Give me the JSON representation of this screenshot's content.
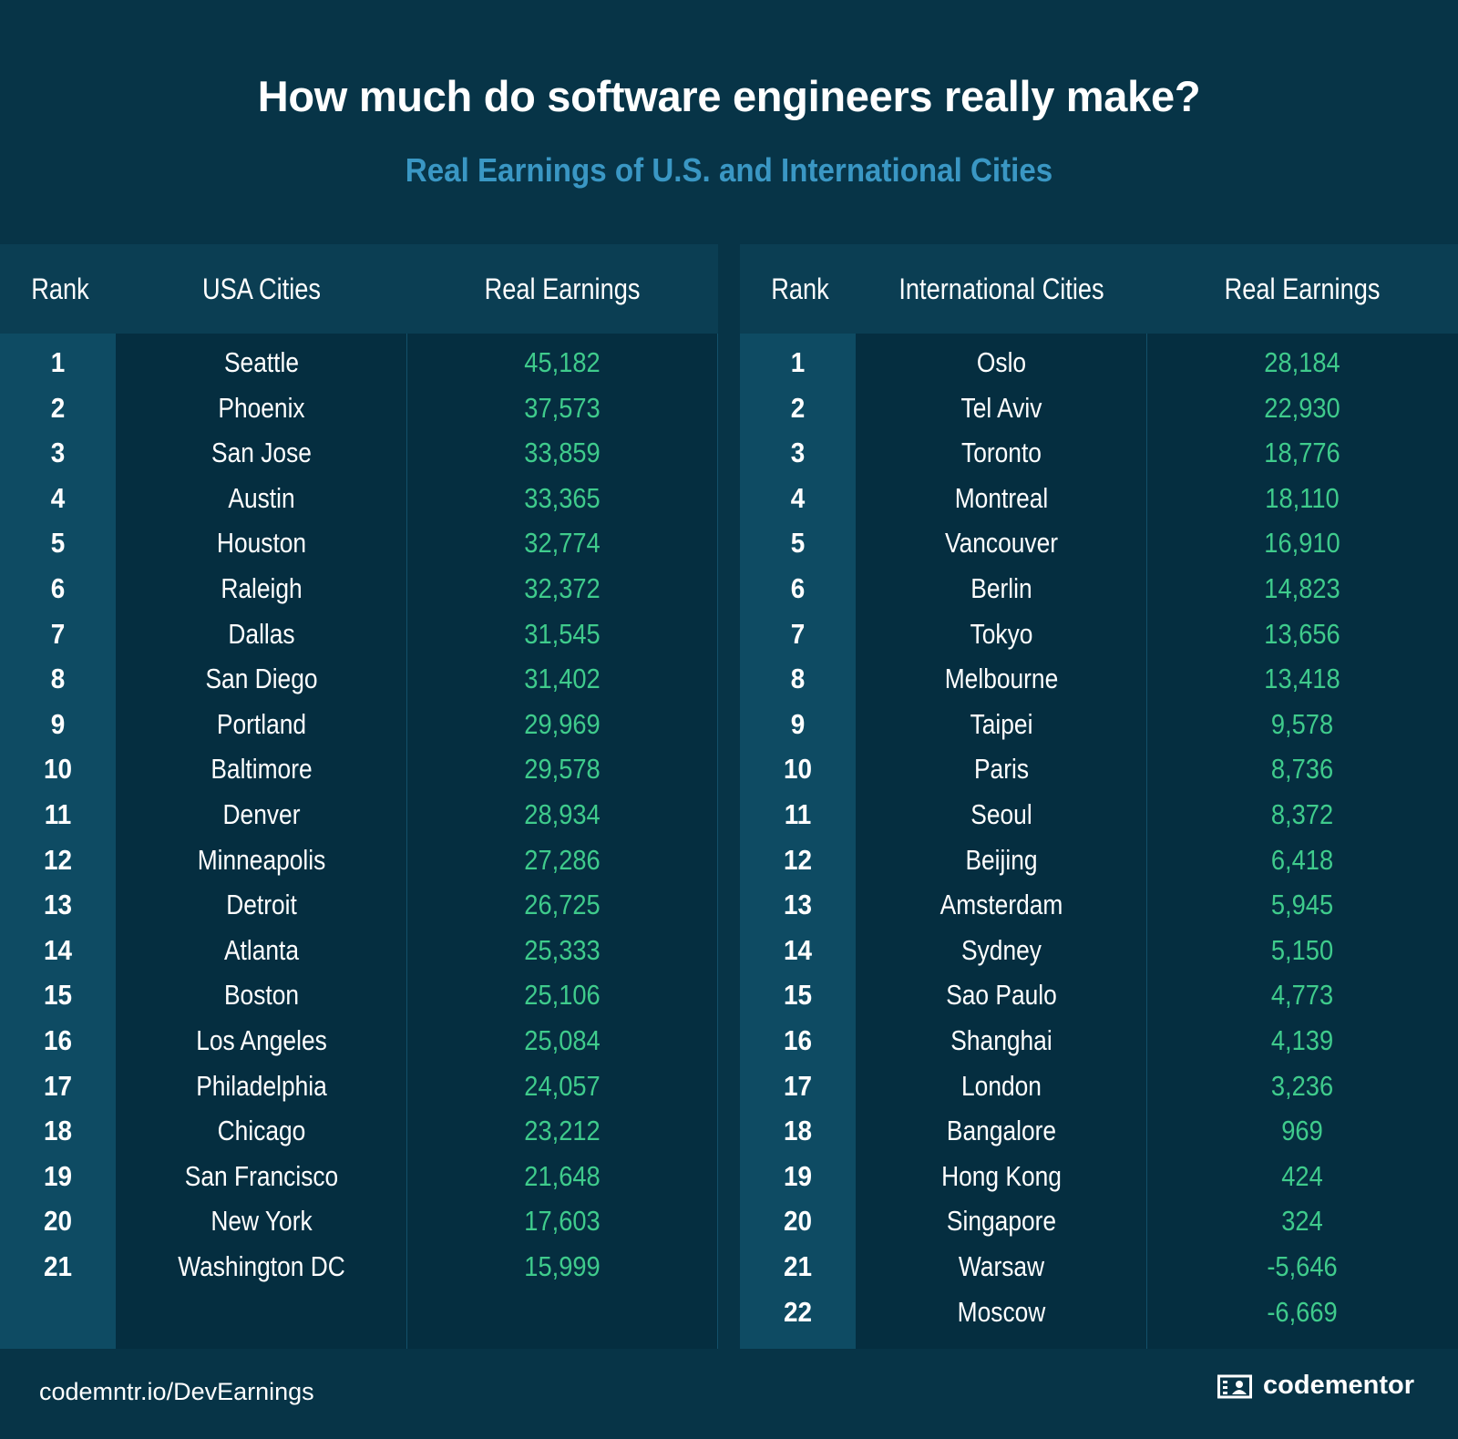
{
  "header": {
    "title": "How much do software engineers really make?",
    "subtitle": "Real Earnings of U.S. and International Cities"
  },
  "colors": {
    "background": "#073447",
    "subtitle": "#3a97c4",
    "earnings": "#3fcb8c",
    "rank_column": "#0e4b63"
  },
  "chart_data": [
    {
      "type": "table",
      "title": "USA Cities",
      "columns": [
        "Rank",
        "USA Cities",
        "Real Earnings"
      ],
      "rows": [
        {
          "rank": "1",
          "city": "Seattle",
          "earnings": "45,182"
        },
        {
          "rank": "2",
          "city": "Phoenix",
          "earnings": "37,573"
        },
        {
          "rank": "3",
          "city": "San Jose",
          "earnings": "33,859"
        },
        {
          "rank": "4",
          "city": "Austin",
          "earnings": "33,365"
        },
        {
          "rank": "5",
          "city": "Houston",
          "earnings": "32,774"
        },
        {
          "rank": "6",
          "city": "Raleigh",
          "earnings": "32,372"
        },
        {
          "rank": "7",
          "city": "Dallas",
          "earnings": "31,545"
        },
        {
          "rank": "8",
          "city": "San Diego",
          "earnings": "31,402"
        },
        {
          "rank": "9",
          "city": "Portland",
          "earnings": "29,969"
        },
        {
          "rank": "10",
          "city": "Baltimore",
          "earnings": "29,578"
        },
        {
          "rank": "11",
          "city": "Denver",
          "earnings": "28,934"
        },
        {
          "rank": "12",
          "city": "Minneapolis",
          "earnings": "27,286"
        },
        {
          "rank": "13",
          "city": "Detroit",
          "earnings": "26,725"
        },
        {
          "rank": "14",
          "city": "Atlanta",
          "earnings": "25,333"
        },
        {
          "rank": "15",
          "city": "Boston",
          "earnings": "25,106"
        },
        {
          "rank": "16",
          "city": "Los Angeles",
          "earnings": "25,084"
        },
        {
          "rank": "17",
          "city": "Philadelphia",
          "earnings": "24,057"
        },
        {
          "rank": "18",
          "city": "Chicago",
          "earnings": "23,212"
        },
        {
          "rank": "19",
          "city": "San Francisco",
          "earnings": "21,648"
        },
        {
          "rank": "20",
          "city": "New York",
          "earnings": "17,603"
        },
        {
          "rank": "21",
          "city": "Washington DC",
          "earnings": "15,999"
        }
      ]
    },
    {
      "type": "table",
      "title": "International Cities",
      "columns": [
        "Rank",
        "International Cities",
        "Real Earnings"
      ],
      "rows": [
        {
          "rank": "1",
          "city": "Oslo",
          "earnings": "28,184"
        },
        {
          "rank": "2",
          "city": "Tel Aviv",
          "earnings": "22,930"
        },
        {
          "rank": "3",
          "city": "Toronto",
          "earnings": "18,776"
        },
        {
          "rank": "4",
          "city": "Montreal",
          "earnings": "18,110"
        },
        {
          "rank": "5",
          "city": "Vancouver",
          "earnings": "16,910"
        },
        {
          "rank": "6",
          "city": "Berlin",
          "earnings": "14,823"
        },
        {
          "rank": "7",
          "city": "Tokyo",
          "earnings": "13,656"
        },
        {
          "rank": "8",
          "city": "Melbourne",
          "earnings": "13,418"
        },
        {
          "rank": "9",
          "city": "Taipei",
          "earnings": "9,578"
        },
        {
          "rank": "10",
          "city": "Paris",
          "earnings": "8,736"
        },
        {
          "rank": "11",
          "city": "Seoul",
          "earnings": "8,372"
        },
        {
          "rank": "12",
          "city": "Beijing",
          "earnings": "6,418"
        },
        {
          "rank": "13",
          "city": "Amsterdam",
          "earnings": "5,945"
        },
        {
          "rank": "14",
          "city": "Sydney",
          "earnings": "5,150"
        },
        {
          "rank": "15",
          "city": "Sao Paulo",
          "earnings": "4,773"
        },
        {
          "rank": "16",
          "city": "Shanghai",
          "earnings": "4,139"
        },
        {
          "rank": "17",
          "city": "London",
          "earnings": "3,236"
        },
        {
          "rank": "18",
          "city": "Bangalore",
          "earnings": "969"
        },
        {
          "rank": "19",
          "city": "Hong Kong",
          "earnings": "424"
        },
        {
          "rank": "20",
          "city": "Singapore",
          "earnings": "324"
        },
        {
          "rank": "21",
          "city": "Warsaw",
          "earnings": "-5,646"
        },
        {
          "rank": "22",
          "city": "Moscow",
          "earnings": "-6,669"
        }
      ]
    }
  ],
  "footer": {
    "url": "codemntr.io/DevEarnings",
    "brand": "codementor",
    "brand_icon": "codementor-logo-icon"
  }
}
